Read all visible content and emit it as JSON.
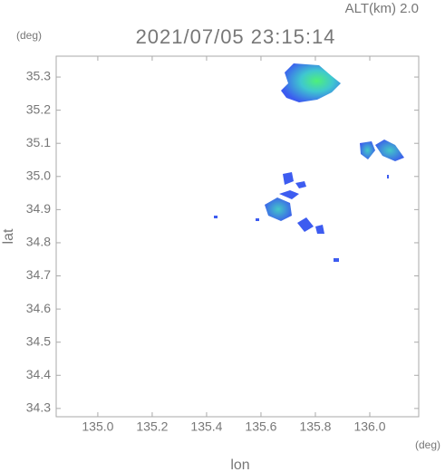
{
  "chart_data": {
    "type": "map",
    "title": "2021/07/05 23:15:14",
    "subtitle": "ALT(km) 2.0",
    "x_label": "lon",
    "y_label": "lat",
    "x_unit": "(deg)",
    "y_unit": "(deg)",
    "xlim": [
      134.847,
      136.18
    ],
    "ylim": [
      34.275,
      35.363
    ],
    "xticks": [
      {
        "value": 135,
        "label": "135.0"
      },
      135.2,
      135.4,
      135.6,
      135.8,
      {
        "value": 136,
        "label": "136.0"
      }
    ],
    "yticks": [
      34.3,
      34.4,
      34.5,
      34.6,
      34.7,
      34.8,
      34.9,
      {
        "value": 35,
        "label": "35.0"
      },
      35.1,
      35.2,
      35.3
    ]
  }
}
